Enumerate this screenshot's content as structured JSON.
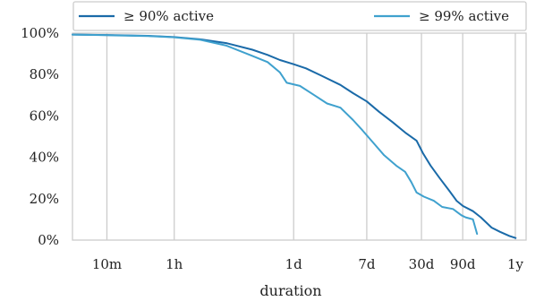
{
  "chart_data": {
    "type": "line",
    "title": "",
    "xlabel": "duration",
    "ylabel": "",
    "x_scale": "log",
    "x_unit": "minutes",
    "xlim": [
      4,
      700000
    ],
    "ylim": [
      0,
      100
    ],
    "x_ticks": [
      {
        "label": "10m",
        "value": 10
      },
      {
        "label": "1h",
        "value": 60
      },
      {
        "label": "1d",
        "value": 1440
      },
      {
        "label": "7d",
        "value": 10080
      },
      {
        "label": "30d",
        "value": 43200
      },
      {
        "label": "90d",
        "value": 129600
      },
      {
        "label": "1y",
        "value": 525600
      }
    ],
    "y_ticks": [
      {
        "label": "0%",
        "value": 0
      },
      {
        "label": "20%",
        "value": 20
      },
      {
        "label": "40%",
        "value": 40
      },
      {
        "label": "60%",
        "value": 60
      },
      {
        "label": "80%",
        "value": 80
      },
      {
        "label": "100%",
        "value": 100
      }
    ],
    "grid": "vertical",
    "legend": {
      "placement": "top",
      "position": "above-plot"
    },
    "series": [
      {
        "name": "≥ 90% active",
        "color": "#1a6aa8",
        "points": [
          [
            4,
            99.3
          ],
          [
            10,
            99.1
          ],
          [
            30,
            98.7
          ],
          [
            60,
            98.1
          ],
          [
            120,
            97.0
          ],
          [
            240,
            95.2
          ],
          [
            480,
            92.0
          ],
          [
            720,
            89.5
          ],
          [
            1000,
            87.0
          ],
          [
            1440,
            85.0
          ],
          [
            2000,
            83.0
          ],
          [
            3000,
            79.5
          ],
          [
            5000,
            75.0
          ],
          [
            7000,
            71.0
          ],
          [
            10080,
            67.0
          ],
          [
            14000,
            62.0
          ],
          [
            20000,
            57.0
          ],
          [
            28000,
            52.0
          ],
          [
            38000,
            48.0
          ],
          [
            45000,
            42.0
          ],
          [
            55000,
            36.0
          ],
          [
            70000,
            30.0
          ],
          [
            90000,
            24.0
          ],
          [
            110000,
            19.0
          ],
          [
            130000,
            16.5
          ],
          [
            170000,
            14.0
          ],
          [
            210000,
            11.0
          ],
          [
            280000,
            6.0
          ],
          [
            350000,
            4.0
          ],
          [
            450000,
            2.0
          ],
          [
            530000,
            1.0
          ]
        ]
      },
      {
        "name": "≥ 99% active",
        "color": "#3fa1ce",
        "points": [
          [
            4,
            99.3
          ],
          [
            10,
            99.0
          ],
          [
            30,
            98.6
          ],
          [
            60,
            98.0
          ],
          [
            120,
            96.8
          ],
          [
            240,
            94.0
          ],
          [
            480,
            89.0
          ],
          [
            720,
            86.0
          ],
          [
            1000,
            81.0
          ],
          [
            1200,
            76.0
          ],
          [
            1700,
            74.5
          ],
          [
            2500,
            70.0
          ],
          [
            3500,
            66.0
          ],
          [
            5000,
            64.0
          ],
          [
            7000,
            58.0
          ],
          [
            9000,
            53.0
          ],
          [
            12000,
            47.0
          ],
          [
            16000,
            41.0
          ],
          [
            22000,
            36.0
          ],
          [
            28000,
            33.0
          ],
          [
            33000,
            28.0
          ],
          [
            38000,
            23.0
          ],
          [
            46000,
            21.0
          ],
          [
            60000,
            19.0
          ],
          [
            75000,
            16.0
          ],
          [
            100000,
            15.0
          ],
          [
            125000,
            12.0
          ],
          [
            140000,
            11.0
          ],
          [
            170000,
            10.0
          ],
          [
            190000,
            3.0
          ]
        ]
      }
    ]
  }
}
